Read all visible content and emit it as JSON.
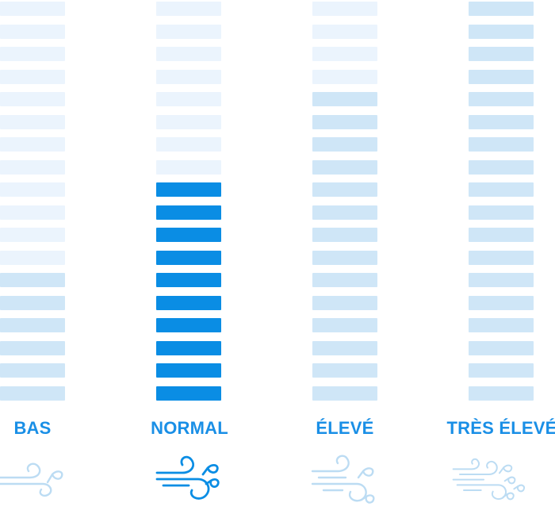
{
  "segments_total": 18,
  "levels": [
    {
      "id": "bas",
      "label": "BAS",
      "active_segments": 6,
      "selected": false
    },
    {
      "id": "normal",
      "label": "NORMAL",
      "active_segments": 10,
      "selected": true
    },
    {
      "id": "eleve",
      "label": "ÉLEVÉ",
      "active_segments": 14,
      "selected": false
    },
    {
      "id": "tres-eleve",
      "label": "TRÈS ÉLEVÉ",
      "active_segments": 18,
      "selected": false
    }
  ],
  "colors": {
    "segment_active_selected": "#0a8de4",
    "segment_active_dim": "#cfe6f7",
    "segment_inactive": "#ebf4fd",
    "label": "#1a8fe6",
    "icon_selected": "#0a8de4",
    "icon_dim": "#bcdcf3"
  },
  "icons": {
    "bas": "wind-leaves-icon",
    "normal": "wind-leaves-icon",
    "eleve": "wind-leaves-icon",
    "tres-eleve": "wind-leaves-icon"
  }
}
